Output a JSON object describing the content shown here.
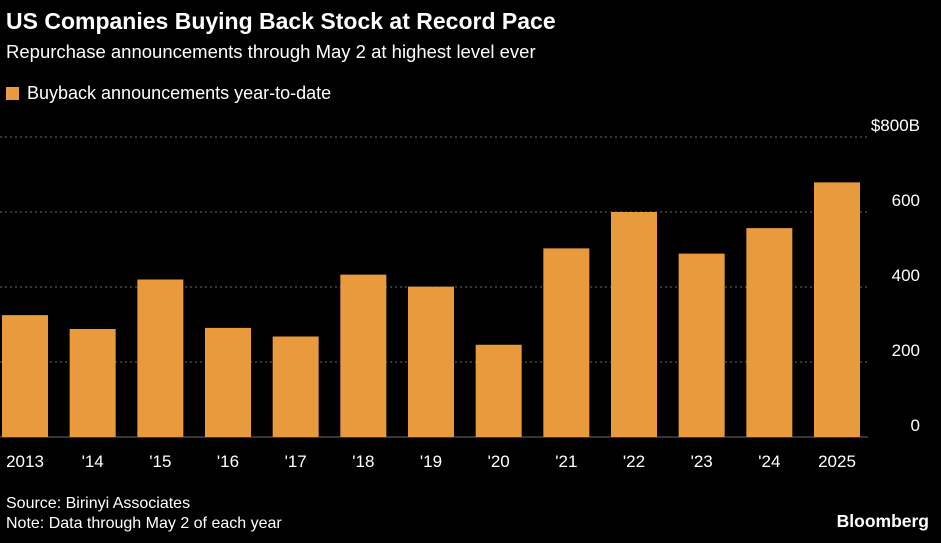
{
  "header": {
    "title": "US Companies Buying Back Stock at Record Pace",
    "subtitle": "Repurchase announcements through May 2 at highest level ever"
  },
  "legend": {
    "label": "Buyback announcements year-to-date"
  },
  "colors": {
    "background": "#000000",
    "bar": "#e89a3c",
    "gridline": "#6a6a6a",
    "text": "#ffffff"
  },
  "chart_data": {
    "type": "bar",
    "categories": [
      "2013",
      "'14",
      "'15",
      "'16",
      "'17",
      "'18",
      "'19",
      "'20",
      "'21",
      "'22",
      "'23",
      "'24",
      "2025"
    ],
    "series": [
      {
        "name": "Buyback announcements year-to-date",
        "values": [
          325,
          288,
          420,
          291,
          268,
          433,
          401,
          246,
          503,
          600,
          489,
          557,
          679
        ]
      }
    ],
    "y_ticks": [
      "0",
      "200",
      "400",
      "600",
      "$800B"
    ],
    "y_tick_values": [
      0,
      200,
      400,
      600,
      800
    ],
    "ylim": [
      0,
      800
    ],
    "yaxis_position": "right",
    "grid": true
  },
  "footer": {
    "source": "Source: Birinyi Associates",
    "note": "Note: Data through May 2 of each year",
    "brand": "Bloomberg"
  }
}
